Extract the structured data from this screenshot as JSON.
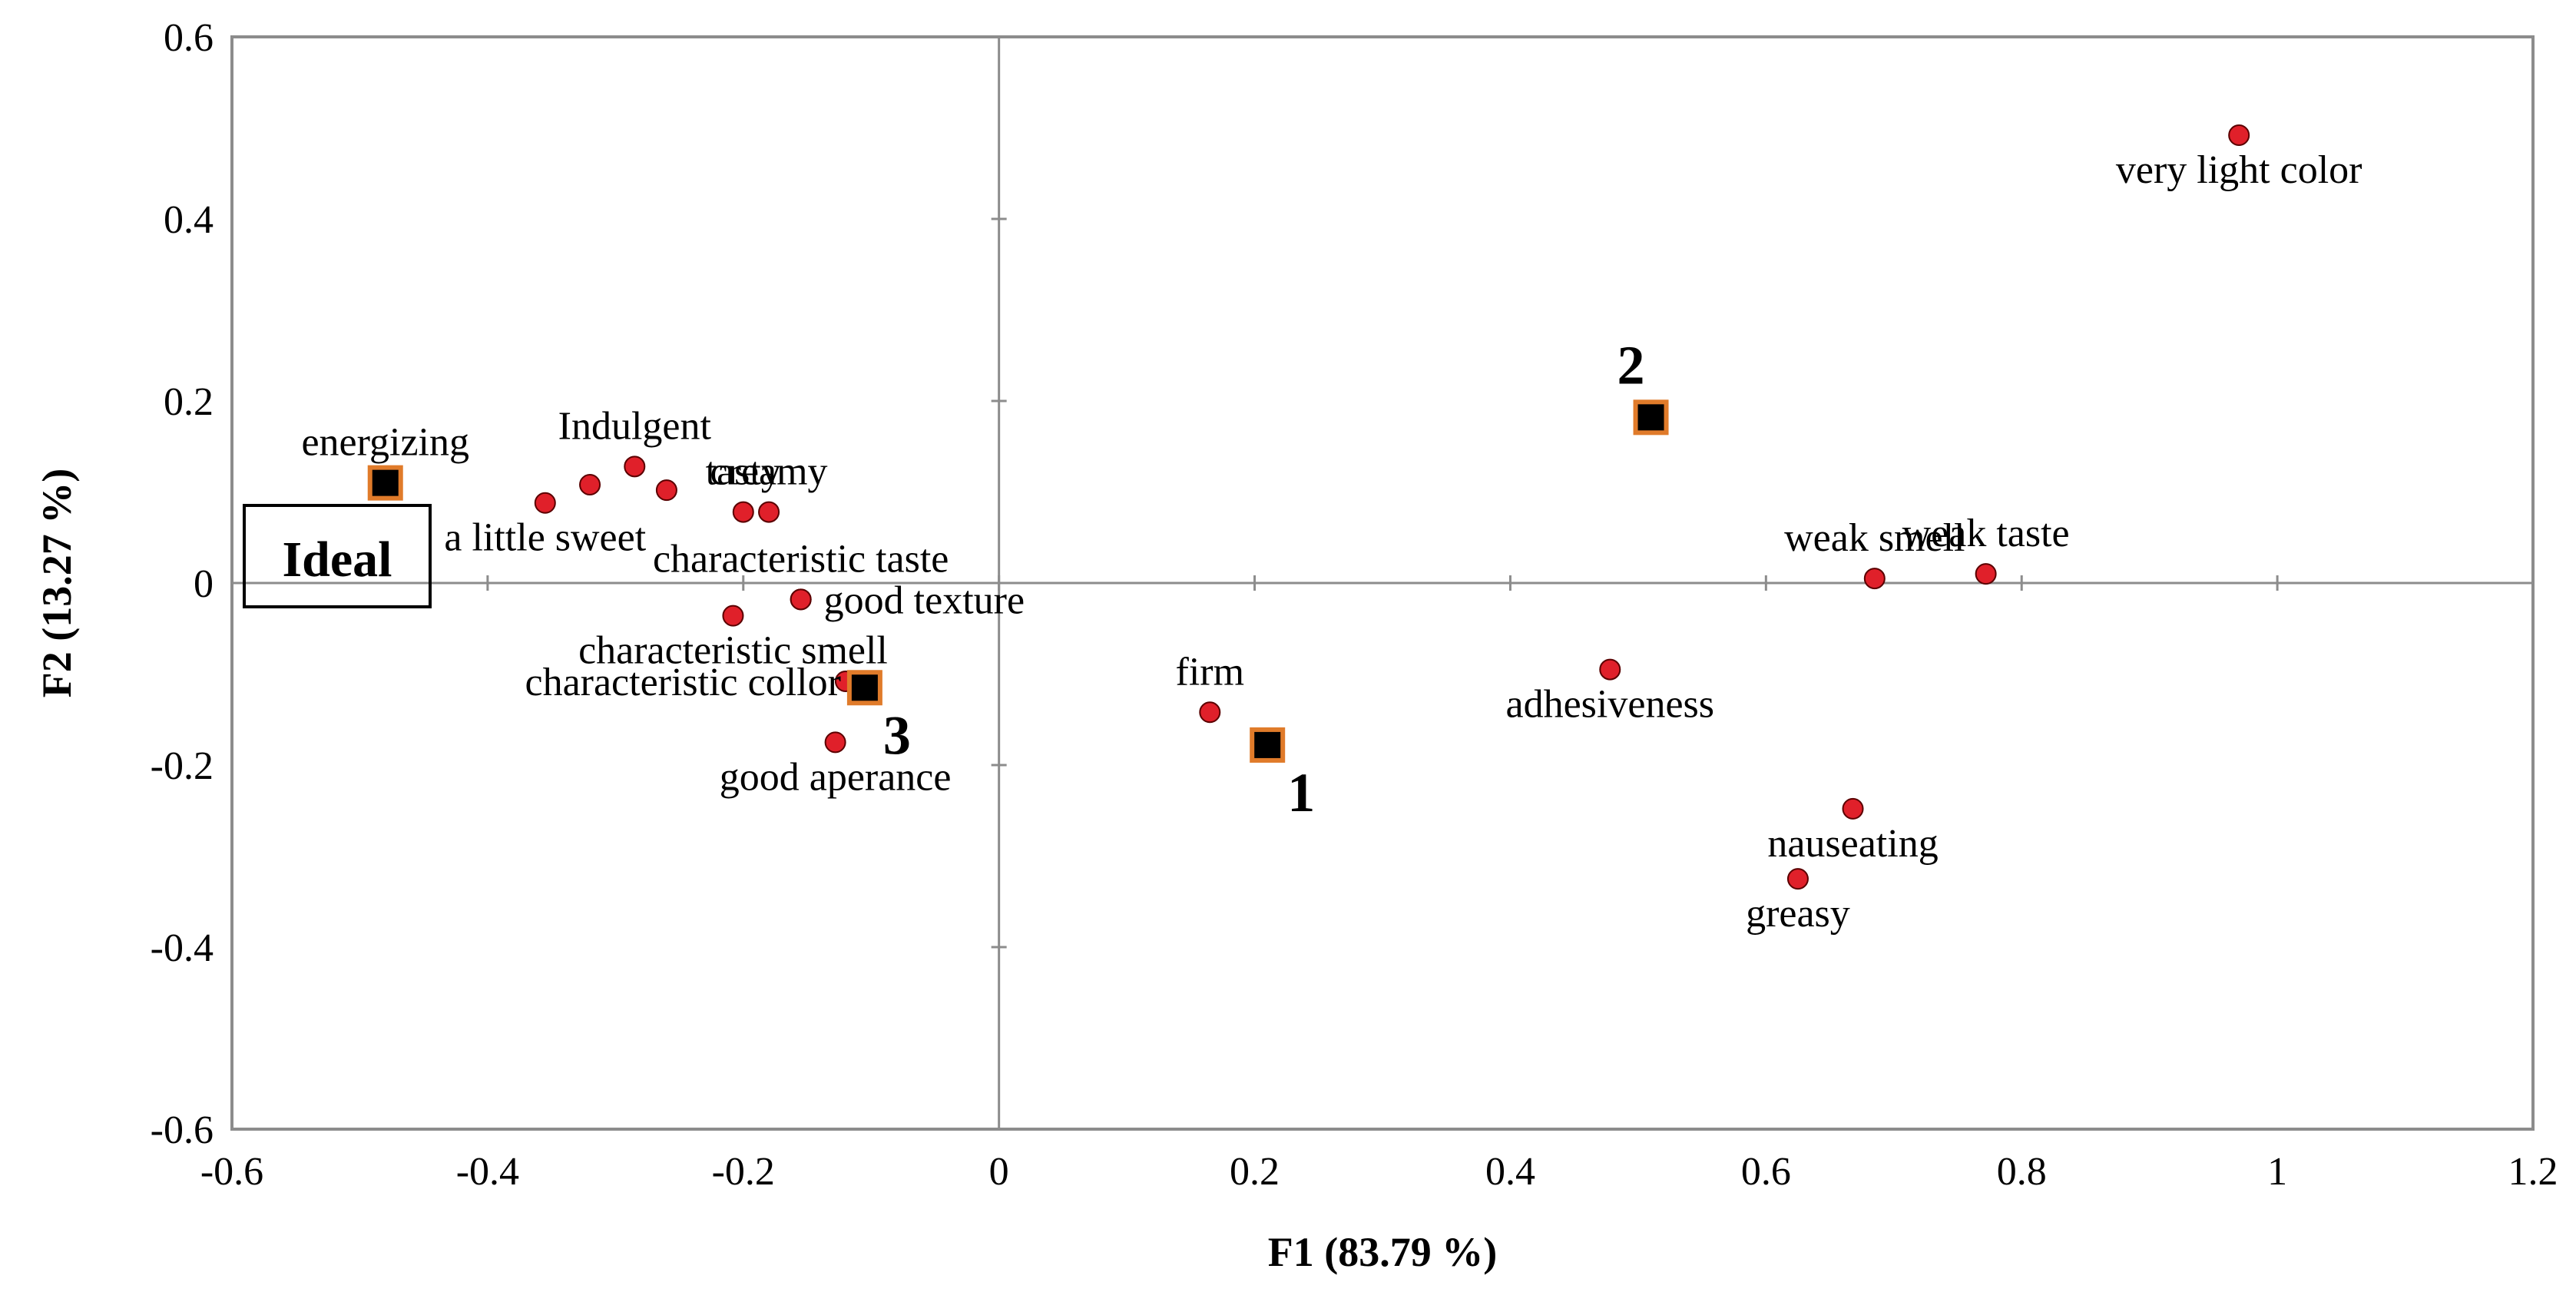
{
  "chart_data": {
    "type": "scatter",
    "title": "",
    "xlabel": "F1 (83.79 %)",
    "ylabel": "F2 (13.27 %)",
    "xlim": [
      -0.6,
      1.2
    ],
    "ylim": [
      -0.6,
      0.6
    ],
    "x_ticks": [
      -0.6,
      -0.4,
      -0.2,
      0,
      0.2,
      0.4,
      0.6,
      0.8,
      1,
      1.2
    ],
    "x_tick_labels": [
      "-0.6",
      "-0.4",
      "-0.2",
      "0",
      "0.2",
      "0.4",
      "0.6",
      "0.8",
      "1",
      "1.2"
    ],
    "y_ticks": [
      -0.6,
      -0.4,
      -0.2,
      0,
      0.2,
      0.4,
      0.6
    ],
    "y_tick_labels": [
      "-0.6",
      "-0.4",
      "-0.2",
      "0",
      "0.2",
      "0.4",
      "0.6"
    ],
    "grid": false,
    "colors": {
      "attribute_point": "#e0202a",
      "product_fill": "#000000",
      "product_border": "#e07b2a",
      "axis": "#8c8c8c",
      "frame": "#8c8c8c"
    },
    "series": [
      {
        "name": "Attributes",
        "marker": "dot",
        "points": [
          {
            "label": "energizing",
            "x": -0.48,
            "y": 0.11,
            "anchor": "above"
          },
          {
            "label": "Indulgent",
            "x": -0.285,
            "y": 0.128,
            "anchor": "above"
          },
          {
            "label": "a little sweet",
            "x": -0.355,
            "y": 0.088,
            "anchor": "below"
          },
          {
            "label": "",
            "x": -0.32,
            "y": 0.108,
            "anchor": "none"
          },
          {
            "label": "",
            "x": -0.26,
            "y": 0.102,
            "anchor": "none"
          },
          {
            "label": "tasty",
            "x": -0.2,
            "y": 0.078,
            "anchor": "above"
          },
          {
            "label": "creamy",
            "x": -0.18,
            "y": 0.078,
            "anchor": "above"
          },
          {
            "label": "characteristic taste",
            "x": -0.155,
            "y": -0.018,
            "anchor": "above"
          },
          {
            "label": "good texture",
            "x": -0.155,
            "y": -0.018,
            "anchor": "right"
          },
          {
            "label": "characteristic smell",
            "x": -0.208,
            "y": -0.036,
            "anchor": "below"
          },
          {
            "label": "characteristic collor",
            "x": -0.12,
            "y": -0.108,
            "anchor": "left"
          },
          {
            "label": "good aperance",
            "x": -0.128,
            "y": -0.175,
            "anchor": "below"
          },
          {
            "label": "firm",
            "x": 0.165,
            "y": -0.142,
            "anchor": "above"
          },
          {
            "label": "very light color",
            "x": 0.97,
            "y": 0.492,
            "anchor": "below"
          },
          {
            "label": "weak smell",
            "x": 0.685,
            "y": 0.005,
            "anchor": "above"
          },
          {
            "label": "weak taste",
            "x": 0.772,
            "y": 0.01,
            "anchor": "above"
          },
          {
            "label": "adhesiveness",
            "x": 0.478,
            "y": -0.095,
            "anchor": "below"
          },
          {
            "label": "nauseating",
            "x": 0.668,
            "y": -0.248,
            "anchor": "below"
          },
          {
            "label": "greasy",
            "x": 0.625,
            "y": -0.325,
            "anchor": "below"
          }
        ]
      },
      {
        "name": "Products",
        "marker": "square",
        "points": [
          {
            "label": "Ideal",
            "x": -0.48,
            "y": 0.11
          },
          {
            "label": "1",
            "x": 0.21,
            "y": -0.178
          },
          {
            "label": "2",
            "x": 0.51,
            "y": 0.182
          },
          {
            "label": "3",
            "x": -0.105,
            "y": -0.115
          }
        ]
      }
    ]
  }
}
